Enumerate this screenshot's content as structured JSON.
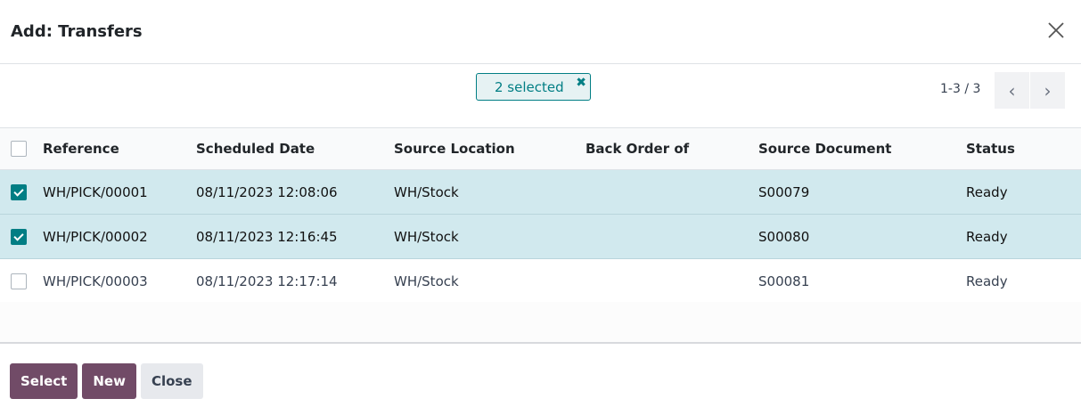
{
  "dialog": {
    "title": "Add: Transfers"
  },
  "filter": {
    "chip_label": "2 selected",
    "remove_icon": "close-icon"
  },
  "pager": {
    "value": "1-3 / 3"
  },
  "table": {
    "columns": [
      "Reference",
      "Scheduled Date",
      "Source Location",
      "Back Order of",
      "Source Document",
      "Status"
    ],
    "rows": [
      {
        "selected": true,
        "cells": [
          "WH/PICK/00001",
          "08/11/2023 12:08:06",
          "WH/Stock",
          "",
          "S00079",
          "Ready"
        ]
      },
      {
        "selected": true,
        "cells": [
          "WH/PICK/00002",
          "08/11/2023 12:16:45",
          "WH/Stock",
          "",
          "S00080",
          "Ready"
        ]
      },
      {
        "selected": false,
        "cells": [
          "WH/PICK/00003",
          "08/11/2023 12:17:14",
          "WH/Stock",
          "",
          "S00081",
          "Ready"
        ]
      }
    ]
  },
  "footer": {
    "select": "Select",
    "new": "New",
    "close": "Close"
  },
  "colors": {
    "accent": "#017e84",
    "primary": "#714b67",
    "selected_row": "#d1e9ee"
  }
}
